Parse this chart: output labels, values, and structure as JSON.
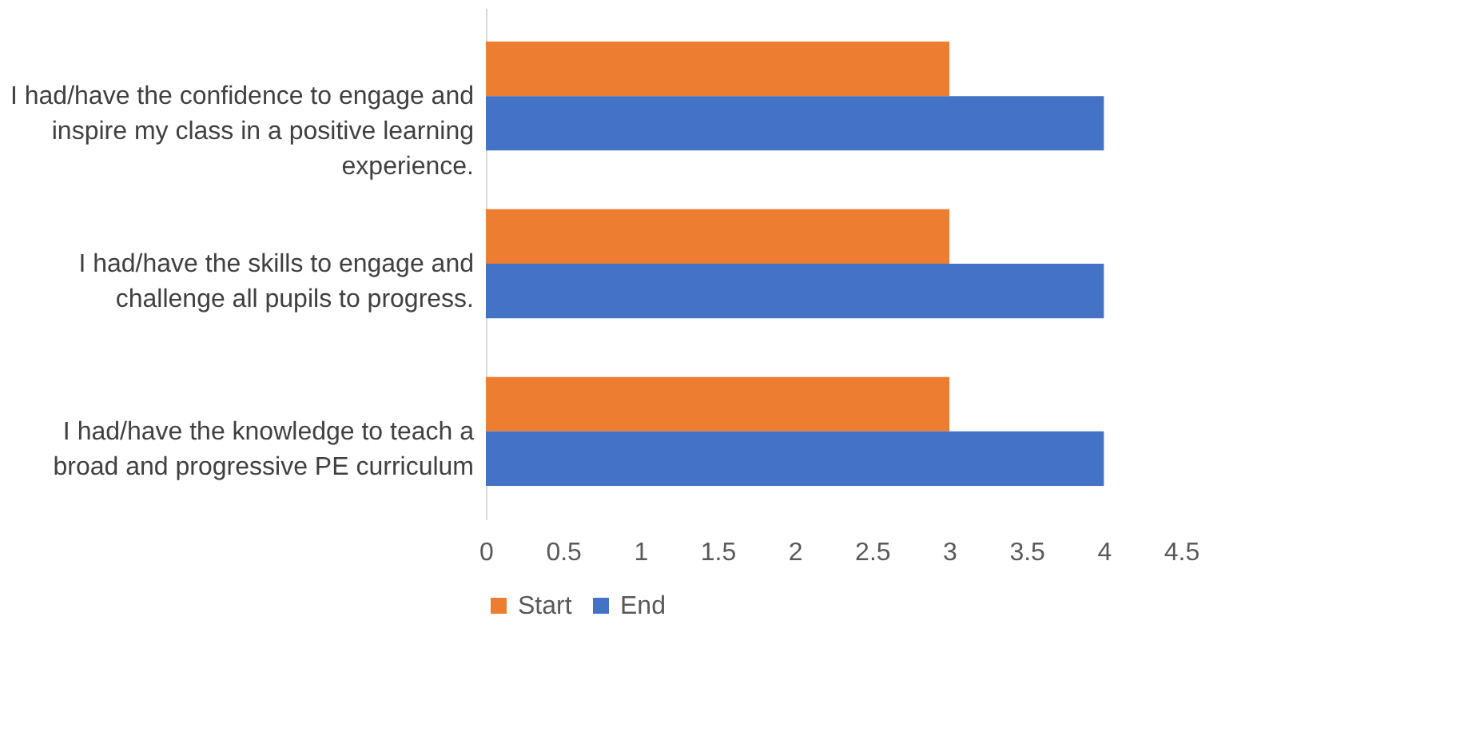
{
  "chart_data": {
    "type": "bar",
    "orientation": "horizontal",
    "categories": [
      "I had/have the confidence to engage and inspire my class in a positive learning experience.",
      "I had/have the skills to engage and challenge all pupils to progress.",
      "I had/have the knowledge to teach a broad and progressive PE curriculum"
    ],
    "series": [
      {
        "name": "Start",
        "color": "#ed7d31",
        "values": [
          3,
          3,
          3
        ]
      },
      {
        "name": "End",
        "color": "#4472c4",
        "values": [
          4,
          4,
          4
        ]
      }
    ],
    "xlim": [
      0,
      4.5
    ],
    "xticks": [
      0,
      0.5,
      1,
      1.5,
      2,
      2.5,
      3,
      3.5,
      4,
      4.5
    ],
    "legend": "bottom"
  }
}
